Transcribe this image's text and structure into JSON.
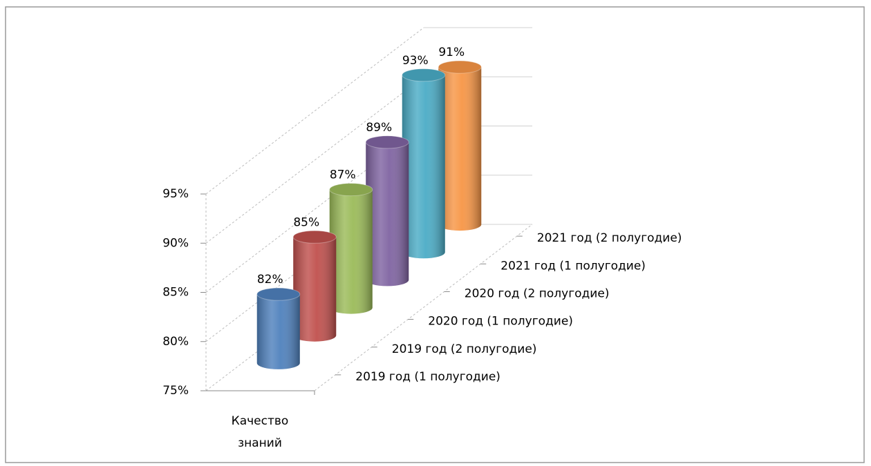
{
  "chart_data": {
    "type": "cylinder3d",
    "categories": [
      "Качество знаний"
    ],
    "series": [
      {
        "name": "2019 год (1 полугодие)",
        "color": "#4f81bd",
        "values": [
          82
        ],
        "value_labels": [
          "82%"
        ]
      },
      {
        "name": "2019 год (2 полугодие)",
        "color": "#c0504d",
        "values": [
          85
        ],
        "value_labels": [
          "85%"
        ]
      },
      {
        "name": "2020 год (1 полугодие)",
        "color": "#9bbb59",
        "values": [
          87
        ],
        "value_labels": [
          "87%"
        ]
      },
      {
        "name": "2020 год (2 полугодие)",
        "color": "#8064a2",
        "values": [
          89
        ],
        "value_labels": [
          "89%"
        ]
      },
      {
        "name": "2021 год (1 полугодие)",
        "color": "#4bacc6",
        "values": [
          93
        ],
        "value_labels": [
          "93%"
        ]
      },
      {
        "name": "2021 год (2 полугодие)",
        "color": "#f79646",
        "values": [
          91
        ],
        "value_labels": [
          "91%"
        ]
      }
    ],
    "ylim": [
      75,
      95
    ],
    "yticks": [
      {
        "value": 75,
        "label": "75%"
      },
      {
        "value": 80,
        "label": "80%"
      },
      {
        "value": 85,
        "label": "85%"
      },
      {
        "value": 90,
        "label": "90%"
      },
      {
        "value": 95,
        "label": "95%"
      }
    ],
    "grid": true
  }
}
